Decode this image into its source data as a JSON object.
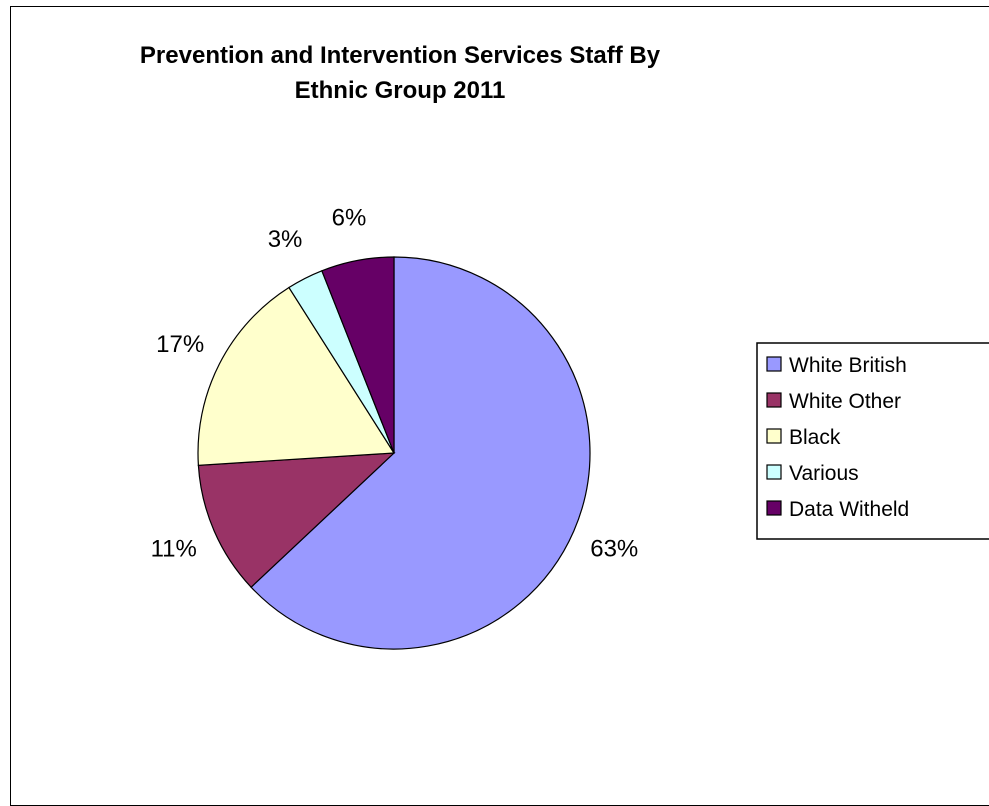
{
  "chart_data": {
    "type": "pie",
    "title_lines": [
      "Prevention and Intervention Services Staff By",
      "Ethnic Group 2011"
    ],
    "slices": [
      {
        "name": "White British",
        "value": 63,
        "label": "63%",
        "color": "#9999ff"
      },
      {
        "name": "White Other",
        "value": 11,
        "label": "11%",
        "color": "#993366"
      },
      {
        "name": "Black",
        "value": 17,
        "label": "17%",
        "color": "#ffffcc"
      },
      {
        "name": "Various",
        "value": 3,
        "label": "3%",
        "color": "#ccffff"
      },
      {
        "name": "Data Witheld",
        "value": 6,
        "label": "6%",
        "color": "#660066"
      }
    ],
    "start_angle_deg": 0,
    "direction": "clockwise",
    "legend": {
      "placement": "right"
    }
  }
}
